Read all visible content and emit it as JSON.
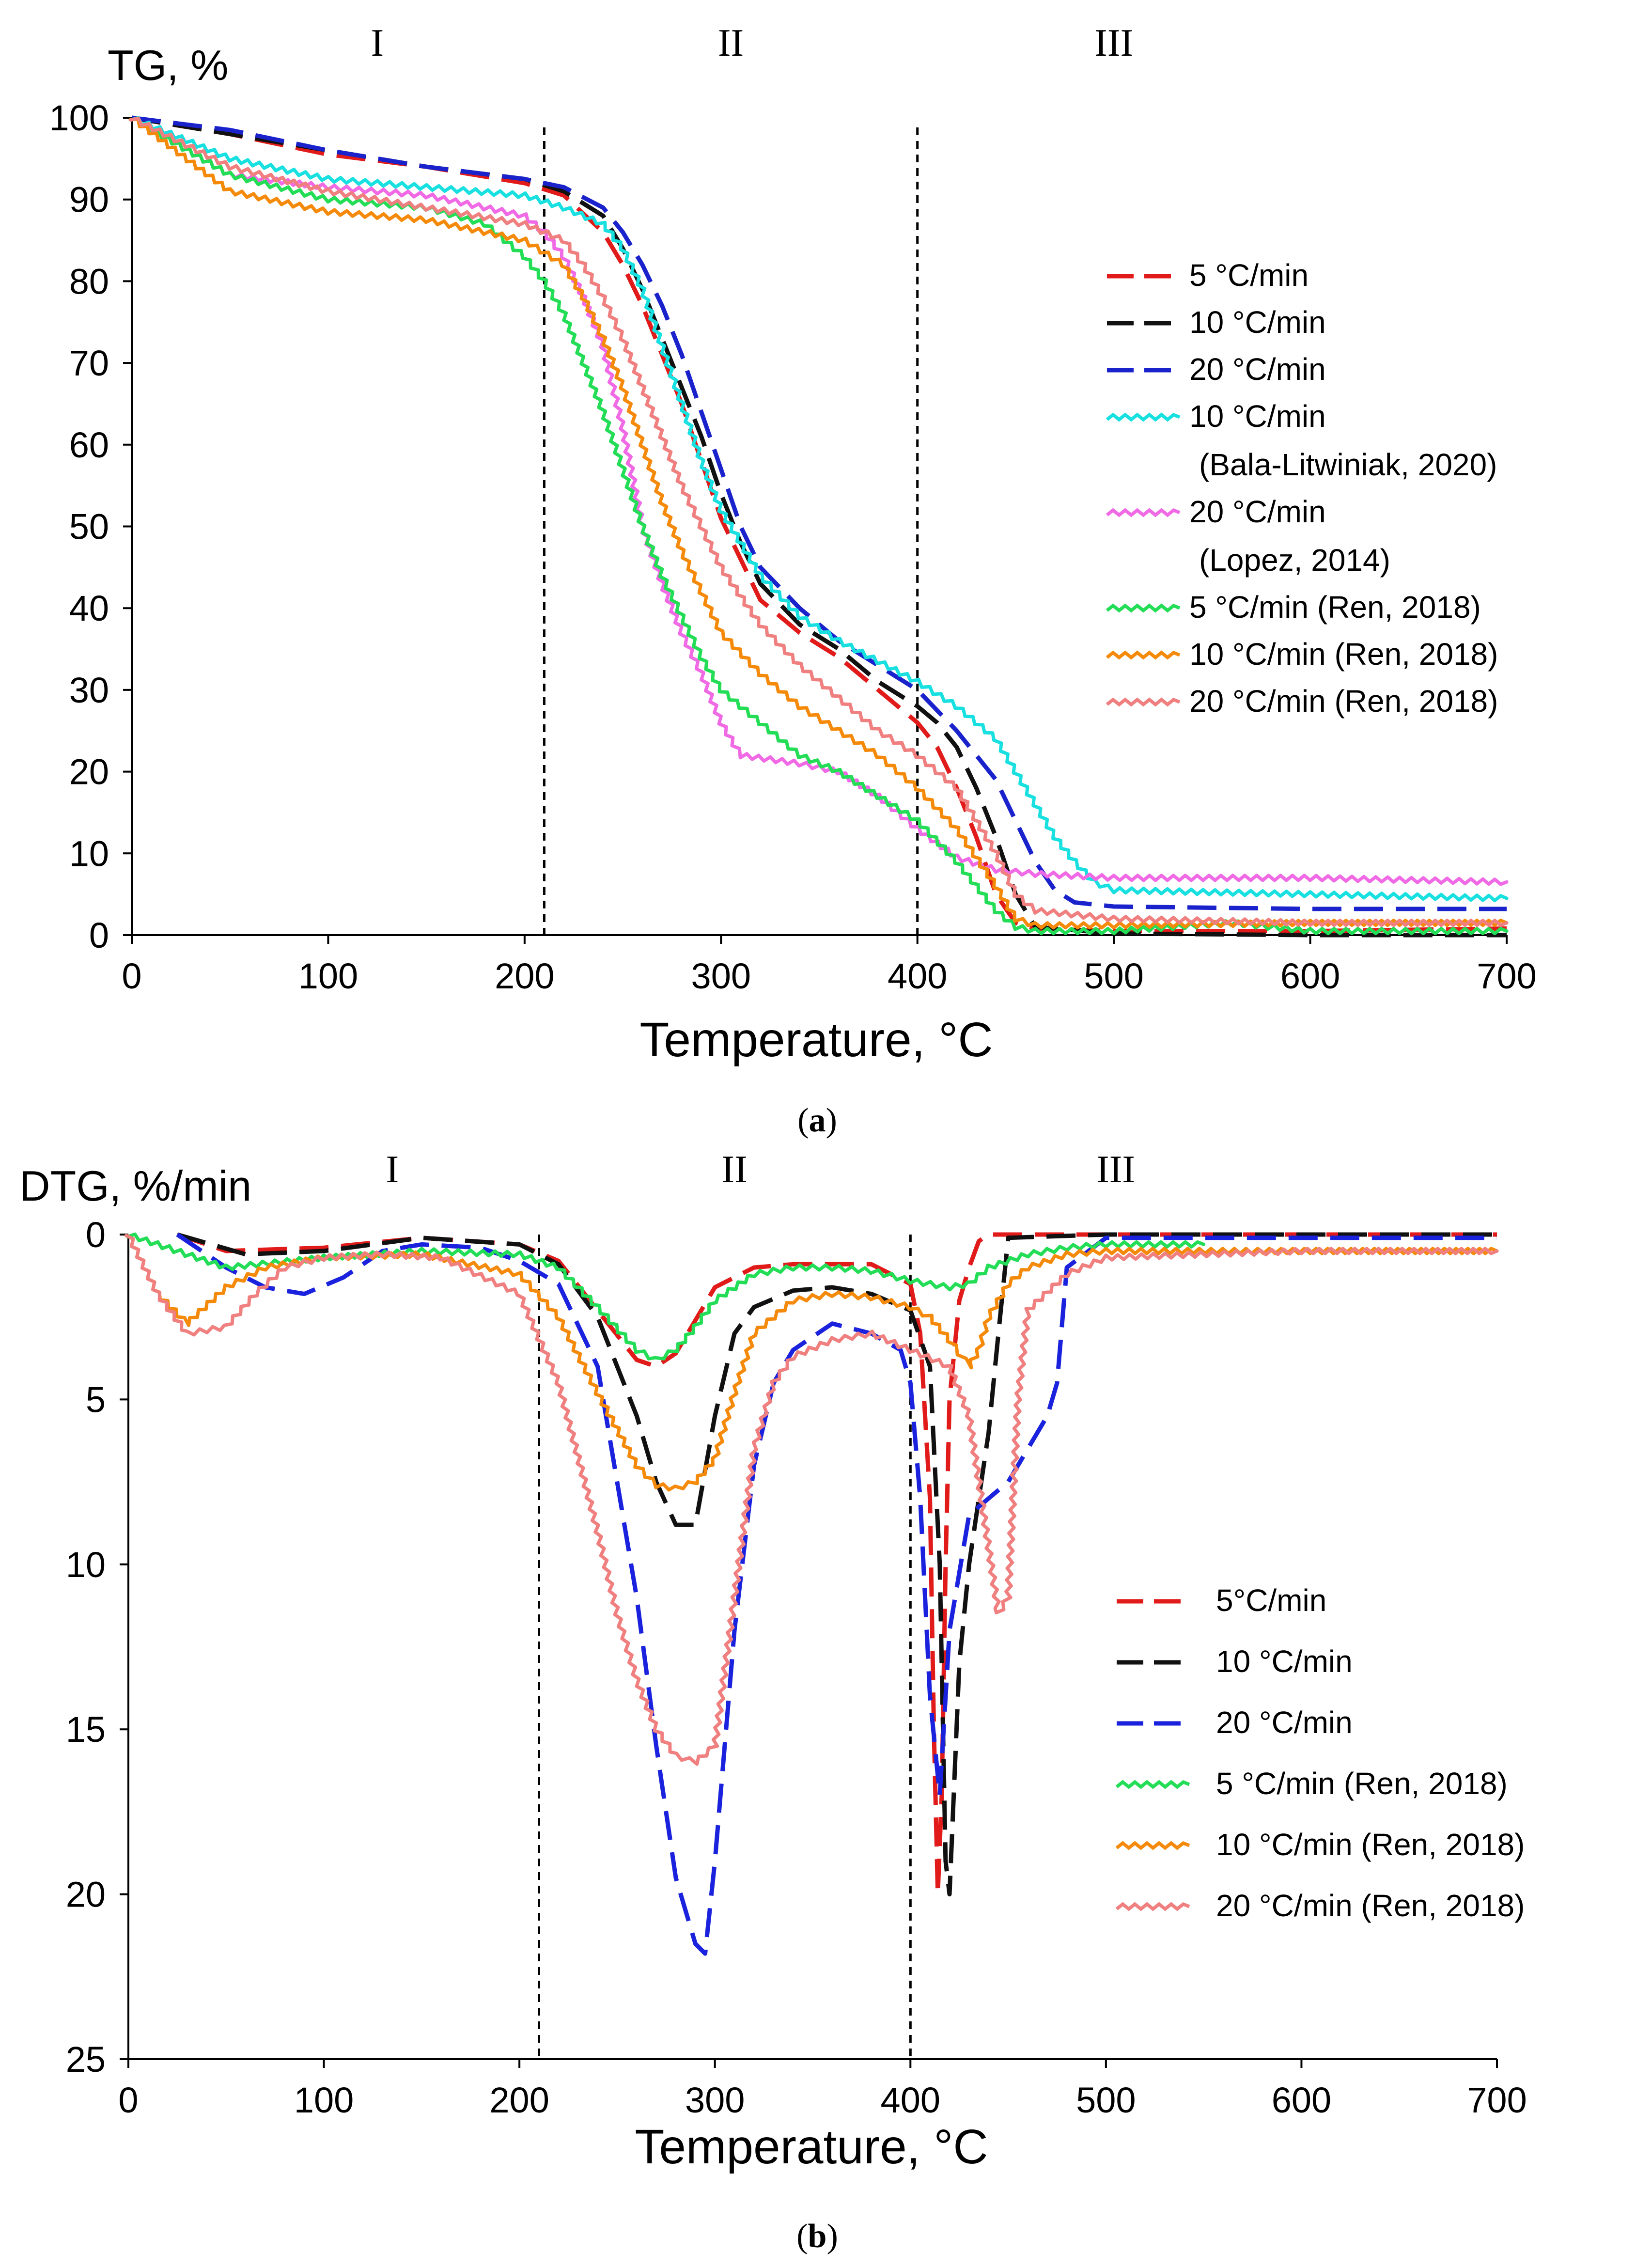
{
  "chart_data": [
    {
      "type": "line",
      "panel": "(a)",
      "panel_letter": "a",
      "ylabel": "TG, %",
      "xlabel": "Temperature, °C",
      "xlim": [
        0,
        700
      ],
      "ylim": [
        0,
        100
      ],
      "y_inverted": false,
      "xticks": [
        0,
        100,
        200,
        300,
        400,
        500,
        600,
        700
      ],
      "yticks": [
        0,
        10,
        20,
        30,
        40,
        50,
        60,
        70,
        80,
        90,
        100
      ],
      "stage_lines": [
        210,
        400
      ],
      "stages": [
        {
          "label": "I",
          "x": 125
        },
        {
          "label": "II",
          "x": 305
        },
        {
          "label": "III",
          "x": 500
        }
      ],
      "legend_position": "right",
      "series": [
        {
          "name": "5 °C/min",
          "name_lines": [
            "5 °C/min"
          ],
          "color": "#e11a1a",
          "style": "dashed",
          "x": [
            0,
            50,
            100,
            150,
            200,
            220,
            240,
            250,
            260,
            270,
            280,
            290,
            300,
            310,
            320,
            340,
            360,
            380,
            400,
            410,
            420,
            430,
            440,
            450,
            460,
            500,
            600,
            700
          ],
          "y": [
            100,
            98,
            95.5,
            94,
            92,
            90.5,
            86,
            82,
            77,
            71,
            65,
            58,
            51,
            46,
            41,
            37,
            34,
            30,
            26,
            23,
            18,
            12,
            5,
            1.5,
            0.8,
            0.5,
            0.5,
            0.8
          ]
        },
        {
          "name": "10 °C/min",
          "name_lines": [
            "10 °C/min"
          ],
          "color": "#111111",
          "style": "dashed",
          "x": [
            0,
            50,
            100,
            150,
            200,
            220,
            240,
            250,
            260,
            270,
            280,
            290,
            300,
            310,
            320,
            340,
            360,
            380,
            400,
            410,
            420,
            430,
            440,
            450,
            460,
            500,
            600,
            700
          ],
          "y": [
            100,
            98,
            96,
            94,
            92.5,
            91,
            88,
            84,
            79,
            73,
            67,
            61,
            54,
            48,
            43,
            38,
            35,
            31,
            28,
            26,
            23,
            18,
            12,
            5,
            1,
            0.2,
            0,
            0
          ]
        },
        {
          "name": "20 °C/min",
          "name_lines": [
            "20 °C/min"
          ],
          "color": "#1a22cc",
          "style": "dashed",
          "x": [
            0,
            50,
            100,
            150,
            200,
            220,
            240,
            250,
            260,
            270,
            280,
            290,
            300,
            310,
            320,
            340,
            360,
            380,
            400,
            420,
            440,
            450,
            460,
            470,
            480,
            500,
            600,
            700
          ],
          "y": [
            100,
            98.5,
            96,
            94,
            92.5,
            91.5,
            89,
            86,
            82,
            77,
            71,
            64,
            57,
            50,
            45,
            40,
            36,
            33,
            30,
            25,
            19,
            14,
            9,
            5.5,
            4,
            3.5,
            3.2,
            3.2
          ]
        },
        {
          "name": "10 °C/min (Bala-Litwiniak, 2020)",
          "name_lines": [
            "10 °C/min",
            "(Bala-Litwiniak, 2020)"
          ],
          "color": "#18e0e0",
          "style": "zigzag",
          "x": [
            0,
            50,
            100,
            150,
            200,
            220,
            240,
            250,
            260,
            270,
            280,
            290,
            300,
            320,
            340,
            360,
            380,
            400,
            420,
            440,
            450,
            460,
            470,
            480,
            490,
            500,
            600,
            700
          ],
          "y": [
            100,
            95,
            92.5,
            91.5,
            90.5,
            89,
            87,
            84,
            79,
            72,
            65,
            58,
            52,
            44,
            39,
            36,
            33.5,
            31,
            28,
            24,
            20,
            16,
            12,
            9,
            6.5,
            5.5,
            5,
            4.5
          ]
        },
        {
          "name": "20 °C/min (Lopez, 2014)",
          "name_lines": [
            "20 °C/min",
            "(Lopez, 2014)"
          ],
          "color": "#f06ae6",
          "style": "zigzag",
          "x": [
            0,
            50,
            100,
            150,
            200,
            210,
            220,
            230,
            240,
            250,
            260,
            270,
            280,
            290,
            300,
            310,
            340,
            360,
            380,
            400,
            420,
            440,
            460,
            500,
            600,
            700
          ],
          "y": [
            100,
            93,
            91.5,
            90.5,
            88,
            86,
            83,
            78,
            72,
            62,
            50,
            43,
            37,
            32,
            26,
            22,
            21,
            20,
            17,
            13,
            9.5,
            8,
            7.5,
            7,
            7,
            6.5
          ]
        },
        {
          "name": "5 °C/min (Ren, 2018)",
          "name_lines": [
            "5 °C/min (Ren, 2018)"
          ],
          "color": "#22dd55",
          "style": "zigzag",
          "x": [
            0,
            50,
            100,
            150,
            180,
            200,
            210,
            220,
            230,
            240,
            250,
            260,
            270,
            280,
            290,
            300,
            320,
            340,
            360,
            380,
            400,
            420,
            440,
            450,
            460,
            500,
            560,
            600,
            700
          ],
          "y": [
            100,
            93,
            90,
            89,
            87,
            83,
            80,
            76,
            70,
            64,
            57,
            50,
            44,
            39,
            34,
            30,
            26,
            22,
            20,
            17,
            14,
            9,
            3,
            1,
            0.5,
            0.5,
            1.5,
            0.5,
            0.5
          ]
        },
        {
          "name": "10 °C/min (Ren, 2018)",
          "name_lines": [
            "10 °C/min (Ren, 2018)"
          ],
          "color": "#f58a0a",
          "style": "zigzag",
          "x": [
            0,
            50,
            100,
            150,
            200,
            220,
            230,
            240,
            250,
            260,
            270,
            280,
            290,
            300,
            320,
            340,
            360,
            380,
            400,
            420,
            440,
            450,
            460,
            500,
            600,
            700
          ],
          "y": [
            100,
            91,
            88.5,
            87.5,
            85,
            82,
            78,
            73,
            67,
            60,
            53,
            47,
            42,
            37,
            32,
            28,
            25,
            22,
            18,
            13,
            6,
            2,
            1.2,
            1.2,
            1.5,
            1.5
          ]
        },
        {
          "name": "20 °C/min (Ren, 2018)",
          "name_lines": [
            "20 °C/min (Ren, 2018)"
          ],
          "color": "#f07f7f",
          "style": "zigzag",
          "x": [
            0,
            50,
            100,
            150,
            200,
            220,
            230,
            240,
            250,
            260,
            270,
            280,
            290,
            300,
            320,
            340,
            360,
            380,
            400,
            420,
            440,
            450,
            460,
            500,
            600,
            700
          ],
          "y": [
            100,
            94,
            91,
            89,
            87,
            85,
            82,
            78,
            73,
            67,
            61,
            55,
            50,
            45,
            38,
            33,
            29,
            25,
            22,
            18,
            10,
            5,
            3,
            2,
            1.5,
            1.5
          ]
        }
      ]
    },
    {
      "type": "line",
      "panel": "(b)",
      "panel_letter": "b",
      "ylabel": "DTG, %/min",
      "xlabel": "Temperature, °C",
      "xlim": [
        0,
        700
      ],
      "ylim": [
        0,
        25
      ],
      "y_inverted": true,
      "xticks": [
        0,
        100,
        200,
        300,
        400,
        500,
        600,
        700
      ],
      "yticks": [
        0,
        5,
        10,
        15,
        20,
        25
      ],
      "stage_lines": [
        210,
        400
      ],
      "stages": [
        {
          "label": "I",
          "x": 135
        },
        {
          "label": "II",
          "x": 310
        },
        {
          "label": "III",
          "x": 505
        }
      ],
      "legend_position": "bottom-right",
      "series": [
        {
          "name": "5°C/min",
          "name_lines": [
            "5°C/min"
          ],
          "color": "#e11a1a",
          "style": "dashed",
          "x": [
            25,
            50,
            100,
            150,
            200,
            220,
            240,
            260,
            270,
            280,
            290,
            300,
            320,
            340,
            360,
            380,
            400,
            405,
            410,
            412,
            414,
            416,
            418,
            420,
            425,
            430,
            435,
            440,
            500,
            700
          ],
          "y": [
            0,
            0.5,
            0.4,
            0.1,
            0.3,
            0.8,
            2.3,
            3.8,
            4.0,
            3.6,
            2.6,
            1.6,
            1.0,
            0.9,
            0.9,
            0.9,
            1.5,
            3.0,
            8.0,
            15.0,
            20.0,
            17.0,
            10.0,
            5.0,
            2.0,
            1.0,
            0.2,
            0,
            0,
            0
          ]
        },
        {
          "name": "10 °C/min",
          "name_lines": [
            "10 °C/min"
          ],
          "color": "#111111",
          "style": "dashed",
          "x": [
            25,
            60,
            100,
            150,
            200,
            220,
            240,
            260,
            270,
            280,
            290,
            300,
            310,
            320,
            340,
            360,
            380,
            400,
            410,
            415,
            418,
            420,
            425,
            430,
            435,
            440,
            445,
            450,
            500,
            700
          ],
          "y": [
            0,
            0.6,
            0.5,
            0.1,
            0.3,
            0.9,
            2.5,
            5.5,
            7.5,
            8.8,
            8.8,
            5.5,
            3.0,
            2.2,
            1.7,
            1.6,
            1.8,
            2.3,
            4.0,
            10.0,
            19.0,
            20.0,
            13.0,
            10.0,
            8.0,
            6.0,
            3.0,
            0.1,
            0,
            0
          ]
        },
        {
          "name": "20 °C/min",
          "name_lines": [
            "20 °C/min"
          ],
          "color": "#1a22dd",
          "style": "dashed",
          "x": [
            25,
            50,
            70,
            90,
            110,
            130,
            150,
            180,
            200,
            220,
            240,
            250,
            260,
            270,
            280,
            290,
            295,
            300,
            310,
            320,
            330,
            340,
            360,
            380,
            395,
            400,
            405,
            410,
            415,
            420,
            430,
            440,
            450,
            460,
            470,
            475,
            480,
            500,
            700
          ],
          "y": [
            0,
            1.0,
            1.6,
            1.8,
            1.3,
            0.5,
            0.3,
            0.4,
            0.8,
            1.5,
            4.0,
            7.5,
            11.0,
            15.5,
            19.5,
            21.5,
            21.8,
            19.0,
            12.0,
            7.0,
            4.5,
            3.5,
            2.7,
            3.0,
            3.5,
            4.5,
            8.0,
            14.0,
            17.0,
            12.0,
            8.5,
            8.0,
            7.5,
            6.5,
            5.5,
            4.5,
            1.0,
            0.1,
            0.1
          ]
        },
        {
          "name": "5 °C/min (Ren, 2018)",
          "name_lines": [
            "5 °C/min (Ren, 2018)"
          ],
          "color": "#22dd55",
          "style": "zigzag",
          "x": [
            0,
            50,
            100,
            150,
            200,
            220,
            240,
            260,
            270,
            280,
            290,
            300,
            320,
            340,
            360,
            380,
            400,
            420,
            430,
            440,
            460,
            480,
            500,
            550
          ],
          "y": [
            0,
            1.0,
            0.7,
            0.5,
            0.6,
            1.0,
            2.2,
            3.5,
            3.8,
            3.5,
            2.8,
            2.0,
            1.2,
            1.0,
            1.0,
            1.1,
            1.4,
            1.6,
            1.5,
            1.0,
            0.6,
            0.4,
            0.3,
            0.3
          ]
        },
        {
          "name": "10 °C/min (Ren, 2018)",
          "name_lines": [
            "10 °C/min (Ren, 2018)"
          ],
          "color": "#f58a0a",
          "style": "zigzag",
          "x": [
            0,
            15,
            30,
            50,
            70,
            100,
            150,
            200,
            220,
            240,
            260,
            270,
            280,
            290,
            300,
            310,
            320,
            340,
            360,
            380,
            400,
            410,
            420,
            425,
            430,
            435,
            440,
            450,
            460,
            480,
            500,
            700
          ],
          "y": [
            0,
            1.8,
            2.7,
            1.6,
            1.0,
            0.7,
            0.6,
            1.2,
            2.5,
            4.8,
            7.0,
            7.6,
            7.7,
            7.5,
            6.8,
            4.8,
            3.0,
            2.0,
            1.8,
            1.9,
            2.2,
            2.5,
            3.2,
            3.6,
            4.0,
            3.5,
            2.5,
            1.5,
            1.0,
            0.6,
            0.5,
            0.5
          ]
        },
        {
          "name": "20 °C/min (Ren, 2018)",
          "name_lines": [
            "20 °C/min (Ren, 2018)"
          ],
          "color": "#f07f7f",
          "style": "zigzag",
          "x": [
            0,
            15,
            30,
            50,
            65,
            80,
            100,
            130,
            160,
            200,
            220,
            240,
            250,
            260,
            270,
            280,
            290,
            300,
            310,
            320,
            330,
            340,
            360,
            380,
            400,
            420,
            430,
            440,
            445,
            450,
            455,
            460,
            480,
            500,
            600,
            700
          ],
          "y": [
            0,
            1.8,
            3.0,
            2.8,
            1.8,
            1.0,
            0.7,
            0.6,
            0.7,
            1.8,
            4.5,
            9.0,
            11.5,
            13.5,
            15.0,
            15.8,
            16.0,
            15.5,
            11.0,
            6.5,
            4.5,
            3.7,
            3.2,
            3.0,
            3.5,
            4.0,
            5.5,
            9.5,
            11.5,
            11.0,
            5.0,
            2.3,
            1.2,
            0.7,
            0.5,
            0.5
          ]
        }
      ]
    }
  ]
}
